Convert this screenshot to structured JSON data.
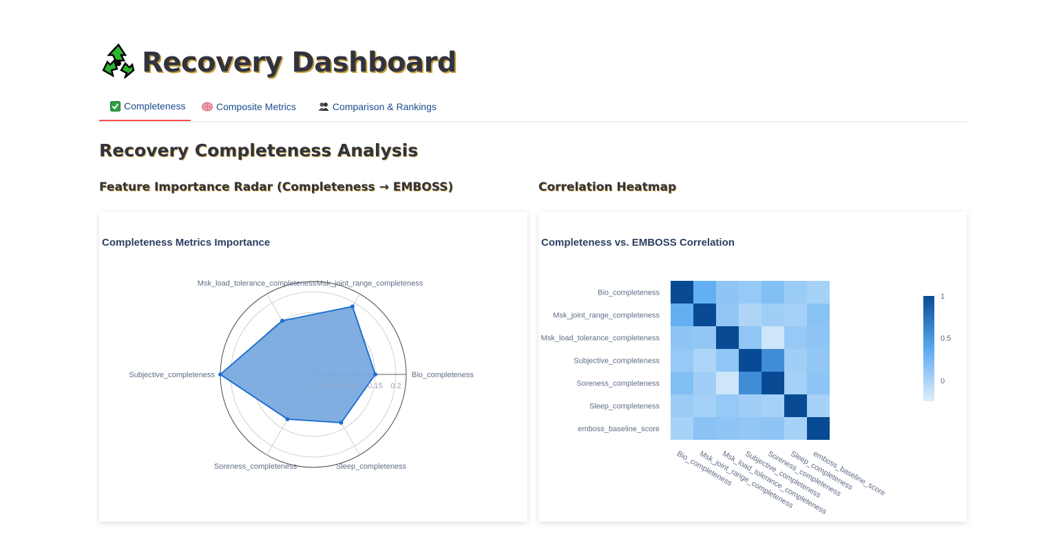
{
  "page": {
    "title": "Recovery Dashboard",
    "section_title": "Recovery Completeness Analysis",
    "left_subtitle": "Feature Importance Radar (Completeness → EMBOSS)",
    "right_subtitle": "Correlation Heatmap"
  },
  "tabs": [
    {
      "label": "Completeness",
      "icon": "check-icon",
      "active": true
    },
    {
      "label": "Composite Metrics",
      "icon": "brain-icon",
      "active": false
    },
    {
      "label": "Comparison & Rankings",
      "icon": "people-icon",
      "active": false
    }
  ],
  "radar": {
    "title": "Completeness Metrics Importance",
    "radial_ticks": [
      "0",
      "0.05",
      "0.1",
      "0.15",
      "0.2"
    ]
  },
  "heatmap": {
    "title": "Completeness vs. EMBOSS Correlation",
    "colorbar_ticks": [
      "1",
      "0.5",
      "0"
    ]
  },
  "chart_data": [
    {
      "type": "radar",
      "title": "Completeness Metrics Importance",
      "categories": [
        "Bio_completeness",
        "Msk_joint_range_completeness",
        "Msk_load_tolerance_completeness",
        "Subjective_completeness",
        "Soreness_completeness",
        "Sleep_completeness"
      ],
      "values": [
        0.15,
        0.19,
        0.15,
        0.225,
        0.125,
        0.135
      ],
      "radial_range": [
        0,
        0.225
      ],
      "color": "#1f6fd1",
      "fill": "#7aaadf"
    },
    {
      "type": "heatmap",
      "title": "Completeness vs. EMBOSS Correlation",
      "labels": [
        "Bio_completeness",
        "Msk_joint_range_completeness",
        "Msk_load_tolerance_completeness",
        "Subjective_completeness",
        "Soreness_completeness",
        "Sleep_completeness",
        "emboss_baseline_score"
      ],
      "matrix": [
        [
          1,
          0.38,
          0.2,
          0.16,
          0.25,
          0.14,
          0.09
        ],
        [
          0.38,
          1,
          0.18,
          0.06,
          0.12,
          0.1,
          0.22
        ],
        [
          0.2,
          0.18,
          1,
          0.19,
          -0.08,
          0.16,
          0.2
        ],
        [
          0.16,
          0.06,
          0.19,
          1,
          0.6,
          0.12,
          0.18
        ],
        [
          0.25,
          0.12,
          -0.08,
          0.6,
          1,
          0.1,
          0.2
        ],
        [
          0.14,
          0.1,
          0.16,
          0.12,
          0.1,
          1,
          0.09
        ],
        [
          0.09,
          0.22,
          0.2,
          0.18,
          0.2,
          0.09,
          1
        ]
      ],
      "zrange": [
        -0.15,
        1
      ],
      "colorscale": [
        "#deeefb",
        "#5aaaf1",
        "#084b94"
      ]
    }
  ]
}
